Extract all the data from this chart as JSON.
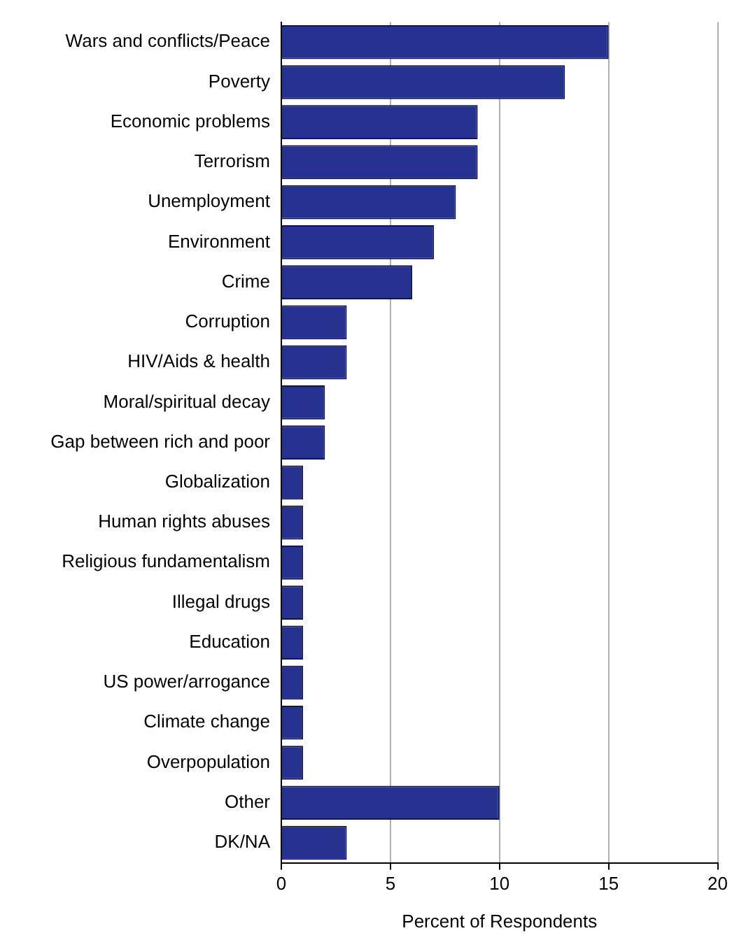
{
  "chart_data": {
    "type": "bar",
    "orientation": "horizontal",
    "xlabel": "Percent of Respondents",
    "categories": [
      "Wars and conflicts/Peace",
      "Poverty",
      "Economic problems",
      "Terrorism",
      "Unemployment",
      "Environment",
      "Crime",
      "Corruption",
      "HIV/Aids & health",
      "Moral/spiritual decay",
      "Gap between rich and poor",
      "Globalization",
      "Human rights abuses",
      "Religious fundamentalism",
      "Illegal drugs",
      "Education",
      "US power/arrogance",
      "Climate change",
      "Overpopulation",
      "Other",
      "DK/NA"
    ],
    "values": [
      15,
      13,
      9,
      9,
      8,
      7,
      6,
      3,
      3,
      2,
      2,
      1,
      1,
      1,
      1,
      1,
      1,
      1,
      1,
      10,
      3
    ],
    "color": "#26328f",
    "xlim": [
      0,
      20
    ],
    "xticks": [
      0,
      5,
      10,
      15,
      20
    ],
    "grid": "x",
    "legend": false
  }
}
